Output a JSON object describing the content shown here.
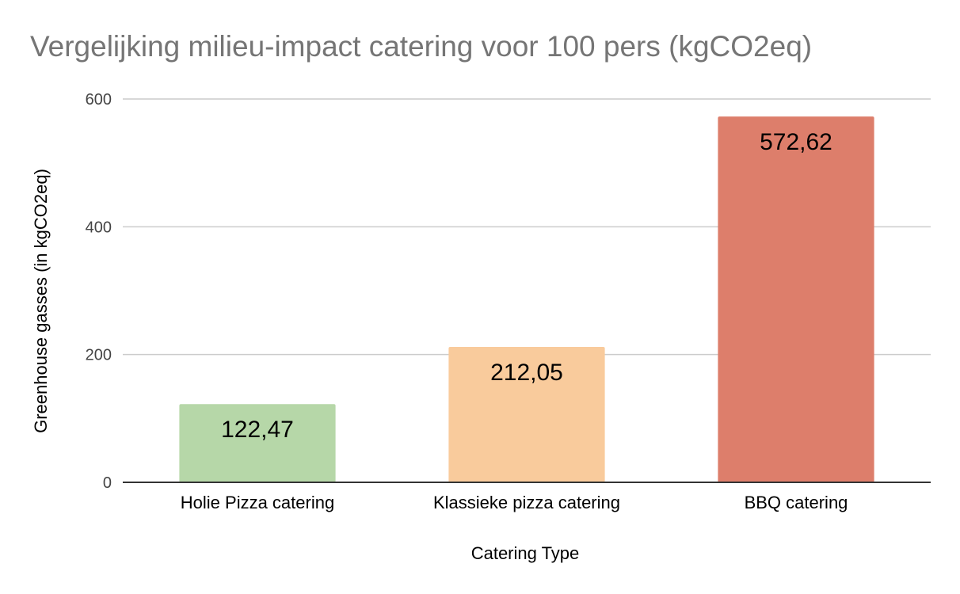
{
  "chart_data": {
    "type": "bar",
    "title": "Vergelijking milieu-impact catering voor 100 pers (kgCO2eq)",
    "xlabel": "Catering Type",
    "ylabel": "Greenhouse gasses (in kgCO2eq)",
    "categories": [
      "Holie Pizza catering",
      "Klassieke pizza catering",
      "BBQ catering"
    ],
    "values": [
      122.47,
      212.05,
      572.62
    ],
    "data_labels": [
      "122,47",
      "212,05",
      "572,62"
    ],
    "colors": [
      "#b6d7a8",
      "#f9cb9c",
      "#dd7e6b"
    ],
    "ylim": [
      0,
      600
    ],
    "yticks": [
      0,
      200,
      400,
      600
    ],
    "ytick_labels": [
      "0",
      "200",
      "400",
      "600"
    ],
    "grid": true,
    "legend": "none"
  }
}
